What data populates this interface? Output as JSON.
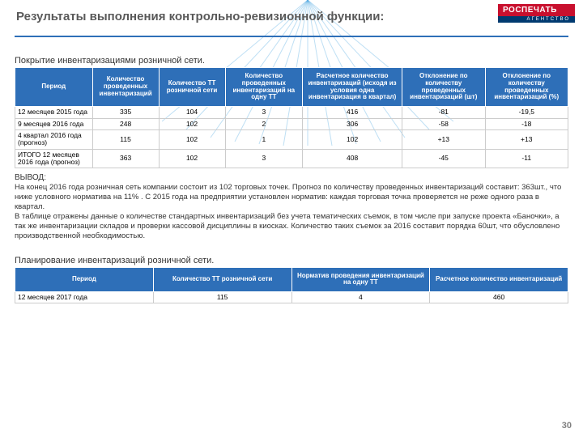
{
  "header": {
    "title": "Результаты выполнения контрольно-ревизионной функции:",
    "logo_top": "РОСПЕЧАТЬ",
    "logo_bot": "АГЕНТСТВО",
    "rule_color": "#2e6fb8",
    "burst_color": "#46a3e0"
  },
  "section1": {
    "heading": "Покрытие инвентаризациями розничной сети.",
    "columns": [
      "Период",
      "Количество проведенных инвентаризаций",
      "Количество ТТ розничной сети",
      "Количество проведенных инвентаризаций на одну ТТ",
      "Расчетное количество инвентаризаций (исходя из условия одна инвентаризация в квартал)",
      "Отклонение по количеству проведенных инвентаризаций (шт)",
      "Отклонение по количеству проведенных инвентаризаций (%)"
    ],
    "rows": [
      [
        "12 месяцев 2015 года",
        "335",
        "104",
        "3",
        "416",
        "-81",
        "-19,5"
      ],
      [
        "9 месяцев 2016 года",
        "248",
        "102",
        "2",
        "306",
        "-58",
        "-18"
      ],
      [
        "4 квартал 2016 года (прогноз)",
        "115",
        "102",
        "1",
        "102",
        "+13",
        "+13"
      ],
      [
        "ИТОГО 12 месяцев 2016 года (прогноз)",
        "363",
        "102",
        "3",
        "408",
        "-45",
        "-11"
      ]
    ],
    "col_widths": [
      "14%",
      "12%",
      "12%",
      "14%",
      "18%",
      "15%",
      "15%"
    ]
  },
  "conclusion": {
    "label": "ВЫВОД:",
    "text": "На конец 2016 года розничная сеть компании состоит из 102 торговых точек. Прогноз по количеству проведенных инвентаризаций составит: 363шт., что ниже условного норматива на 11% . С 2015 года на предприятии установлен норматив: каждая торговая точка проверяется не реже одного раза в квартал.\nВ таблице отражены данные о количестве стандартных инвентаризаций без учета тематических съемок, в том числе при запуске проекта «Баночки», а так же инвентаризации складов и проверки кассовой дисциплины в киосках. Количество таких съемок за 2016 составит порядка 60шт, что обусловлено производственной необходимостью."
  },
  "section2": {
    "heading": "Планирование инвентаризаций розничной сети.",
    "columns": [
      "Период",
      "Количество ТТ розничной сети",
      "Норматив проведения инвентаризаций на одну ТТ",
      "Расчетное количество инвентаризаций"
    ],
    "rows": [
      [
        "12 месяцев 2017 года",
        "115",
        "4",
        "460"
      ]
    ],
    "col_widths": [
      "25%",
      "25%",
      "25%",
      "25%"
    ]
  },
  "page_number": "30",
  "style": {
    "header_bg": "#2e6fb8",
    "header_fg": "#ffffff",
    "cell_border": "#cccccc",
    "font_family": "Arial"
  }
}
